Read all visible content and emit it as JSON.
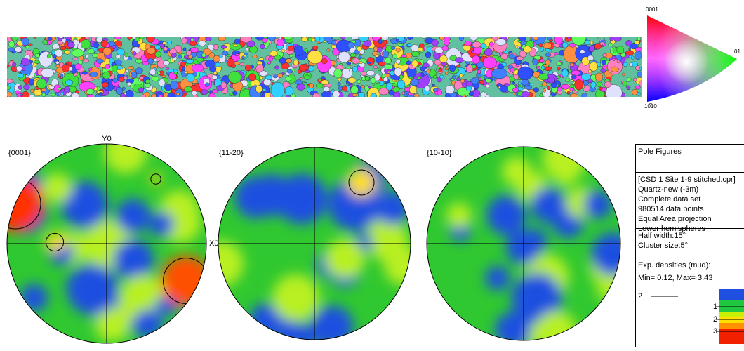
{
  "ipf_key": {
    "top": "0001",
    "right": "01",
    "bottom": "10̅10"
  },
  "pole_figures": [
    {
      "title": "{0001}",
      "y_axis": "Y0",
      "x_axis": "X0"
    },
    {
      "title": "{11-20}"
    },
    {
      "title": "{10-10}"
    }
  ],
  "info": {
    "header": "Pole Figures",
    "dataset": [
      "[CSD 1 Site 1-9 stitched.cpr]",
      "Quartz-new (-3m)",
      "Complete data set",
      "980514 data points",
      "Equal Area projection",
      "Lower hemispheres"
    ],
    "settings": [
      "Half width:15°",
      "Cluster size:5°"
    ],
    "densities": [
      "Exp. densities (mud):",
      "Min= 0.12, Max= 3.43"
    ],
    "contour_label": "2",
    "scale_labels": [
      "1",
      "2",
      "3"
    ]
  }
}
